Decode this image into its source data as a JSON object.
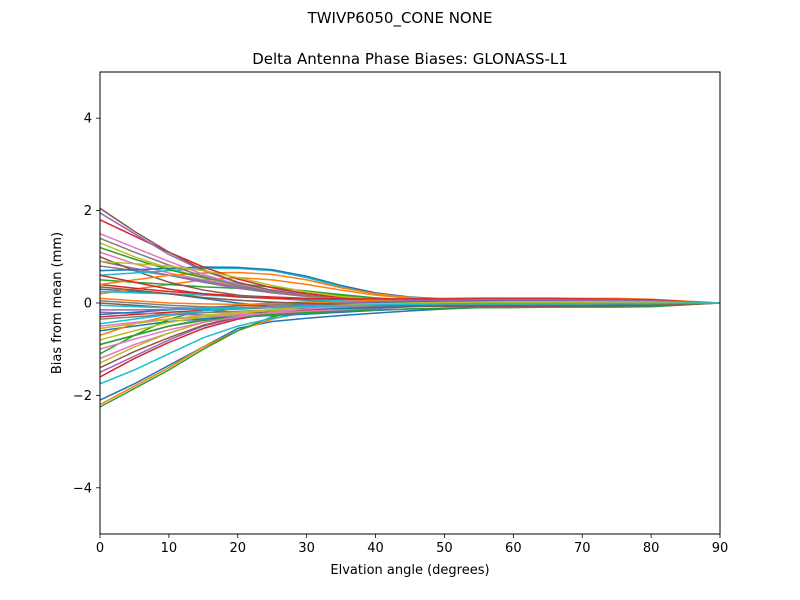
{
  "figure": {
    "suptitle": "TWIVP6050_CONE  NONE"
  },
  "chart_data": {
    "type": "line",
    "title": "Delta Antenna Phase Biases: GLONASS-L1",
    "xlabel": "Elvation angle (degrees)",
    "ylabel": "Bias from mean (mm)",
    "xlim": [
      0,
      90
    ],
    "ylim": [
      -5,
      5
    ],
    "xticks": [
      0,
      10,
      20,
      30,
      40,
      50,
      60,
      70,
      80,
      90
    ],
    "yticks": [
      -4,
      -2,
      0,
      2,
      4
    ],
    "xtick_labels": [
      "0",
      "10",
      "20",
      "30",
      "40",
      "50",
      "60",
      "70",
      "80",
      "90"
    ],
    "ytick_labels": [
      "−4",
      "−2",
      "0",
      "2",
      "4"
    ],
    "grid": false,
    "legend": "none",
    "x": [
      0,
      5,
      10,
      15,
      20,
      25,
      30,
      35,
      40,
      45,
      50,
      55,
      60,
      65,
      70,
      75,
      80,
      85,
      90
    ],
    "series": [
      {
        "color": "#1f77b4",
        "values": [
          -2.1,
          -1.75,
          -1.35,
          -0.95,
          -0.55,
          -0.4,
          -0.33,
          -0.27,
          -0.22,
          -0.17,
          -0.13,
          -0.1,
          -0.08,
          -0.07,
          -0.06,
          -0.05,
          -0.04,
          -0.02,
          0
        ]
      },
      {
        "color": "#ff7f0e",
        "values": [
          -2.2,
          -1.8,
          -1.4,
          -0.95,
          -0.6,
          -0.35,
          -0.18,
          -0.08,
          -0.03,
          0.0,
          0.01,
          0.02,
          0.02,
          0.02,
          0.02,
          0.02,
          0.02,
          0.01,
          0
        ]
      },
      {
        "color": "#2ca02c",
        "values": [
          -2.25,
          -1.85,
          -1.45,
          -1.0,
          -0.6,
          -0.3,
          -0.12,
          -0.04,
          0.0,
          0.02,
          0.03,
          0.03,
          0.03,
          0.03,
          0.02,
          0.02,
          0.02,
          0.01,
          0
        ]
      },
      {
        "color": "#d62728",
        "values": [
          -1.6,
          -1.2,
          -0.85,
          -0.55,
          -0.35,
          -0.22,
          -0.14,
          -0.09,
          -0.06,
          -0.05,
          -0.04,
          -0.03,
          -0.03,
          -0.02,
          -0.02,
          -0.02,
          -0.01,
          -0.01,
          0
        ]
      },
      {
        "color": "#9467bd",
        "values": [
          -1.5,
          -1.15,
          -0.8,
          -0.5,
          -0.32,
          -0.2,
          -0.12,
          -0.07,
          -0.04,
          -0.03,
          -0.02,
          -0.02,
          -0.02,
          -0.02,
          -0.01,
          -0.01,
          -0.01,
          0.0,
          0
        ]
      },
      {
        "color": "#8c564b",
        "values": [
          -1.4,
          -1.05,
          -0.75,
          -0.48,
          -0.3,
          -0.18,
          -0.11,
          -0.06,
          -0.03,
          -0.02,
          -0.02,
          -0.01,
          -0.01,
          -0.01,
          -0.01,
          -0.01,
          0.0,
          0.0,
          0
        ]
      },
      {
        "color": "#e377c2",
        "values": [
          -1.2,
          -0.9,
          -0.65,
          -0.42,
          -0.27,
          -0.16,
          -0.09,
          -0.05,
          -0.02,
          0.0,
          0.01,
          0.02,
          0.02,
          0.02,
          0.02,
          0.02,
          0.01,
          0.01,
          0
        ]
      },
      {
        "color": "#7f7f7f",
        "values": [
          -0.9,
          -0.7,
          -0.5,
          -0.35,
          -0.25,
          -0.17,
          -0.11,
          -0.07,
          -0.04,
          -0.03,
          -0.02,
          -0.02,
          -0.02,
          -0.01,
          -0.01,
          -0.01,
          -0.01,
          0.0,
          0
        ]
      },
      {
        "color": "#bcbd22",
        "values": [
          -1.3,
          -0.95,
          -0.65,
          -0.42,
          -0.26,
          -0.15,
          -0.08,
          -0.04,
          -0.01,
          0.01,
          0.02,
          0.03,
          0.03,
          0.03,
          0.03,
          0.02,
          0.02,
          0.01,
          0
        ]
      },
      {
        "color": "#17becf",
        "values": [
          -1.75,
          -1.45,
          -1.1,
          -0.75,
          -0.5,
          -0.33,
          -0.21,
          -0.13,
          -0.08,
          -0.05,
          -0.03,
          -0.02,
          -0.02,
          -0.01,
          -0.01,
          -0.01,
          -0.01,
          0.0,
          0
        ]
      },
      {
        "color": "#1f77b4",
        "values": [
          -0.6,
          -0.5,
          -0.4,
          -0.34,
          -0.3,
          -0.27,
          -0.24,
          -0.2,
          -0.16,
          -0.13,
          -0.11,
          -0.1,
          -0.09,
          -0.09,
          -0.08,
          -0.07,
          -0.06,
          -0.03,
          0
        ]
      },
      {
        "color": "#ff7f0e",
        "values": [
          -0.7,
          -0.45,
          -0.28,
          -0.17,
          -0.1,
          -0.06,
          -0.04,
          -0.02,
          -0.01,
          0.0,
          0.01,
          0.01,
          0.02,
          0.02,
          0.02,
          0.02,
          0.01,
          0.01,
          0
        ]
      },
      {
        "color": "#2ca02c",
        "values": [
          -1.1,
          -0.7,
          -0.35,
          -0.15,
          -0.05,
          0.0,
          0.02,
          0.03,
          0.03,
          0.03,
          0.03,
          0.03,
          0.02,
          0.02,
          0.02,
          0.02,
          0.01,
          0.01,
          0
        ]
      },
      {
        "color": "#d62728",
        "values": [
          -0.3,
          -0.25,
          -0.2,
          -0.16,
          -0.13,
          -0.1,
          -0.08,
          -0.06,
          -0.04,
          -0.03,
          -0.02,
          -0.02,
          -0.02,
          -0.02,
          -0.01,
          -0.01,
          -0.01,
          0.0,
          0
        ]
      },
      {
        "color": "#9467bd",
        "values": [
          -0.2,
          -0.22,
          -0.24,
          -0.26,
          -0.27,
          -0.26,
          -0.22,
          -0.17,
          -0.12,
          -0.08,
          -0.06,
          -0.05,
          -0.04,
          -0.04,
          -0.03,
          -0.03,
          -0.02,
          -0.01,
          0
        ]
      },
      {
        "color": "#8c564b",
        "values": [
          0.0,
          -0.05,
          -0.1,
          -0.15,
          -0.2,
          -0.2,
          -0.17,
          -0.13,
          -0.09,
          -0.06,
          -0.04,
          -0.03,
          -0.03,
          -0.02,
          -0.02,
          -0.02,
          -0.01,
          -0.01,
          0
        ]
      },
      {
        "color": "#e377c2",
        "values": [
          -0.5,
          -0.42,
          -0.35,
          -0.3,
          -0.26,
          -0.22,
          -0.18,
          -0.14,
          -0.1,
          -0.07,
          -0.05,
          -0.04,
          -0.03,
          -0.03,
          -0.02,
          -0.02,
          -0.02,
          -0.01,
          0
        ]
      },
      {
        "color": "#7f7f7f",
        "values": [
          -0.35,
          -0.3,
          -0.25,
          -0.21,
          -0.18,
          -0.15,
          -0.12,
          -0.09,
          -0.06,
          -0.04,
          -0.03,
          -0.02,
          -0.02,
          -0.02,
          -0.01,
          -0.01,
          -0.01,
          0.0,
          0
        ]
      },
      {
        "color": "#bcbd22",
        "values": [
          -0.8,
          -0.6,
          -0.42,
          -0.3,
          -0.22,
          -0.16,
          -0.11,
          -0.07,
          -0.04,
          -0.02,
          -0.01,
          0.0,
          0.01,
          0.01,
          0.01,
          0.01,
          0.01,
          0.0,
          0
        ]
      },
      {
        "color": "#17becf",
        "values": [
          -0.45,
          -0.35,
          -0.25,
          -0.17,
          -0.12,
          -0.08,
          -0.05,
          -0.03,
          -0.02,
          -0.01,
          -0.01,
          0.0,
          0.0,
          0.0,
          0.0,
          0.0,
          0.0,
          0.0,
          0
        ]
      },
      {
        "color": "#1f77b4",
        "values": [
          0.3,
          0.25,
          0.2,
          0.1,
          0.0,
          -0.08,
          -0.12,
          -0.12,
          -0.1,
          -0.08,
          -0.06,
          -0.05,
          -0.05,
          -0.04,
          -0.04,
          -0.03,
          -0.03,
          -0.01,
          0
        ]
      },
      {
        "color": "#ff7f0e",
        "values": [
          0.2,
          0.3,
          0.4,
          0.5,
          0.55,
          0.5,
          0.4,
          0.28,
          0.17,
          0.1,
          0.06,
          0.04,
          0.03,
          0.03,
          0.02,
          0.02,
          0.02,
          0.01,
          0
        ]
      },
      {
        "color": "#2ca02c",
        "values": [
          0.5,
          0.45,
          0.4,
          0.35,
          0.32,
          0.28,
          0.22,
          0.16,
          0.1,
          0.06,
          0.04,
          0.03,
          0.02,
          0.02,
          0.02,
          0.01,
          0.01,
          0.0,
          0
        ]
      },
      {
        "color": "#d62728",
        "values": [
          0.4,
          0.32,
          0.25,
          0.2,
          0.16,
          0.13,
          0.1,
          0.07,
          0.05,
          0.03,
          0.02,
          0.02,
          0.01,
          0.01,
          0.01,
          0.01,
          0.01,
          0.0,
          0
        ]
      },
      {
        "color": "#9467bd",
        "values": [
          0.9,
          0.75,
          0.6,
          0.45,
          0.32,
          0.22,
          0.14,
          0.08,
          0.04,
          0.02,
          0.01,
          0.01,
          0.01,
          0.01,
          0.0,
          0.0,
          0.0,
          0.0,
          0
        ]
      },
      {
        "color": "#8c564b",
        "values": [
          1.0,
          0.7,
          0.45,
          0.28,
          0.17,
          0.1,
          0.06,
          0.04,
          0.02,
          0.01,
          0.01,
          0.01,
          0.0,
          0.0,
          0.0,
          0.0,
          0.0,
          0.0,
          0
        ]
      },
      {
        "color": "#e377c2",
        "values": [
          1.1,
          0.85,
          0.65,
          0.5,
          0.38,
          0.28,
          0.2,
          0.13,
          0.08,
          0.05,
          0.03,
          0.02,
          0.02,
          0.01,
          0.01,
          0.01,
          0.01,
          0.0,
          0
        ]
      },
      {
        "color": "#7f7f7f",
        "values": [
          0.8,
          0.7,
          0.6,
          0.48,
          0.35,
          0.24,
          0.15,
          0.09,
          0.05,
          0.03,
          0.02,
          0.01,
          0.01,
          0.01,
          0.01,
          0.0,
          0.0,
          0.0,
          0
        ]
      },
      {
        "color": "#bcbd22",
        "values": [
          1.3,
          1.0,
          0.75,
          0.55,
          0.38,
          0.25,
          0.16,
          0.1,
          0.06,
          0.04,
          0.03,
          0.02,
          0.02,
          0.02,
          0.01,
          0.01,
          0.01,
          0.0,
          0
        ]
      },
      {
        "color": "#17becf",
        "values": [
          0.6,
          0.65,
          0.7,
          0.75,
          0.75,
          0.7,
          0.55,
          0.35,
          0.2,
          0.12,
          0.08,
          0.06,
          0.05,
          0.04,
          0.04,
          0.03,
          0.03,
          0.01,
          0
        ]
      },
      {
        "color": "#1f77b4",
        "values": [
          0.7,
          0.72,
          0.75,
          0.78,
          0.77,
          0.72,
          0.58,
          0.38,
          0.22,
          0.13,
          0.09,
          0.07,
          0.06,
          0.05,
          0.04,
          0.04,
          0.03,
          0.01,
          0
        ]
      },
      {
        "color": "#ff7f0e",
        "values": [
          0.4,
          0.5,
          0.6,
          0.65,
          0.66,
          0.62,
          0.5,
          0.33,
          0.2,
          0.12,
          0.08,
          0.06,
          0.05,
          0.04,
          0.04,
          0.03,
          0.03,
          0.01,
          0
        ]
      },
      {
        "color": "#2ca02c",
        "values": [
          1.2,
          0.95,
          0.72,
          0.55,
          0.42,
          0.34,
          0.26,
          0.18,
          0.11,
          0.07,
          0.05,
          0.04,
          0.03,
          0.03,
          0.02,
          0.02,
          0.02,
          0.01,
          0
        ]
      },
      {
        "color": "#d62728",
        "values": [
          1.8,
          1.45,
          1.1,
          0.78,
          0.52,
          0.33,
          0.2,
          0.12,
          0.07,
          0.04,
          0.02,
          0.01,
          0.01,
          0.01,
          0.01,
          0.0,
          0.0,
          0.0,
          0
        ]
      },
      {
        "color": "#9467bd",
        "values": [
          1.95,
          1.5,
          1.05,
          0.7,
          0.44,
          0.27,
          0.16,
          0.09,
          0.05,
          0.03,
          0.02,
          0.01,
          0.01,
          0.01,
          0.0,
          0.0,
          0.0,
          0.0,
          0
        ]
      },
      {
        "color": "#8c564b",
        "values": [
          2.05,
          1.55,
          1.1,
          0.72,
          0.45,
          0.27,
          0.16,
          0.1,
          0.06,
          0.04,
          0.03,
          0.02,
          0.02,
          0.01,
          0.01,
          0.01,
          0.01,
          0.0,
          0
        ]
      },
      {
        "color": "#e377c2",
        "values": [
          1.5,
          1.2,
          0.9,
          0.62,
          0.4,
          0.25,
          0.15,
          0.09,
          0.05,
          0.03,
          0.02,
          0.01,
          0.01,
          0.01,
          0.01,
          0.0,
          0.0,
          0.0,
          0
        ]
      },
      {
        "color": "#7f7f7f",
        "values": [
          1.4,
          1.1,
          0.82,
          0.58,
          0.38,
          0.24,
          0.15,
          0.09,
          0.05,
          0.03,
          0.02,
          0.02,
          0.01,
          0.01,
          0.01,
          0.01,
          0.0,
          0.0,
          0
        ]
      },
      {
        "color": "#bcbd22",
        "values": [
          0.9,
          0.85,
          0.8,
          0.7,
          0.55,
          0.38,
          0.24,
          0.14,
          0.08,
          0.05,
          0.03,
          0.02,
          0.02,
          0.01,
          0.01,
          0.01,
          0.01,
          0.0,
          0
        ]
      },
      {
        "color": "#17becf",
        "values": [
          0.25,
          0.22,
          0.2,
          0.17,
          0.14,
          0.1,
          0.07,
          0.05,
          0.03,
          0.02,
          0.01,
          0.01,
          0.01,
          0.01,
          0.0,
          0.0,
          0.0,
          0.0,
          0
        ]
      },
      {
        "color": "#1f77b4",
        "values": [
          -0.25,
          -0.2,
          -0.15,
          -0.1,
          -0.06,
          -0.03,
          -0.01,
          0.01,
          0.02,
          0.03,
          0.04,
          0.05,
          0.05,
          0.05,
          0.05,
          0.05,
          0.04,
          0.02,
          0
        ]
      },
      {
        "color": "#ff7f0e",
        "values": [
          0.1,
          0.05,
          0.0,
          -0.02,
          -0.03,
          -0.02,
          0.0,
          0.03,
          0.06,
          0.08,
          0.1,
          0.11,
          0.11,
          0.11,
          0.1,
          0.1,
          0.08,
          0.04,
          0
        ]
      },
      {
        "color": "#2ca02c",
        "values": [
          -0.9,
          -0.7,
          -0.5,
          -0.38,
          -0.3,
          -0.25,
          -0.21,
          -0.18,
          -0.15,
          -0.13,
          -0.11,
          -0.1,
          -0.1,
          -0.09,
          -0.09,
          -0.09,
          -0.08,
          -0.04,
          0
        ]
      },
      {
        "color": "#d62728",
        "values": [
          0.6,
          0.45,
          0.3,
          0.2,
          0.13,
          0.1,
          0.09,
          0.09,
          0.09,
          0.09,
          0.09,
          0.09,
          0.09,
          0.09,
          0.09,
          0.08,
          0.07,
          0.03,
          0
        ]
      },
      {
        "color": "#9467bd",
        "values": [
          -0.15,
          -0.15,
          -0.14,
          -0.13,
          -0.11,
          -0.08,
          -0.04,
          0.0,
          0.03,
          0.05,
          0.06,
          0.07,
          0.07,
          0.07,
          0.06,
          0.06,
          0.05,
          0.02,
          0
        ]
      },
      {
        "color": "#8c564b",
        "values": [
          0.35,
          0.28,
          0.2,
          0.12,
          0.06,
          0.02,
          -0.01,
          -0.03,
          -0.05,
          -0.06,
          -0.07,
          -0.07,
          -0.07,
          -0.07,
          -0.06,
          -0.06,
          -0.05,
          -0.03,
          0
        ]
      },
      {
        "color": "#e377c2",
        "values": [
          -1.0,
          -0.78,
          -0.58,
          -0.42,
          -0.3,
          -0.2,
          -0.13,
          -0.08,
          -0.04,
          -0.01,
          0.01,
          0.02,
          0.03,
          0.03,
          0.03,
          0.03,
          0.02,
          0.01,
          0
        ]
      },
      {
        "color": "#7f7f7f",
        "values": [
          0.05,
          0.0,
          -0.05,
          -0.08,
          -0.1,
          -0.1,
          -0.08,
          -0.06,
          -0.04,
          -0.03,
          -0.03,
          -0.03,
          -0.03,
          -0.03,
          -0.03,
          -0.02,
          -0.02,
          -0.01,
          0
        ]
      },
      {
        "color": "#bcbd22",
        "values": [
          -0.55,
          -0.45,
          -0.35,
          -0.27,
          -0.2,
          -0.14,
          -0.09,
          -0.05,
          -0.02,
          0.0,
          0.01,
          0.02,
          0.02,
          0.02,
          0.02,
          0.02,
          0.02,
          0.01,
          0
        ]
      },
      {
        "color": "#17becf",
        "values": [
          -0.05,
          -0.08,
          -0.1,
          -0.11,
          -0.11,
          -0.1,
          -0.08,
          -0.06,
          -0.04,
          -0.03,
          -0.02,
          -0.02,
          -0.02,
          -0.02,
          -0.02,
          -0.01,
          -0.01,
          0.0,
          0
        ]
      }
    ]
  }
}
